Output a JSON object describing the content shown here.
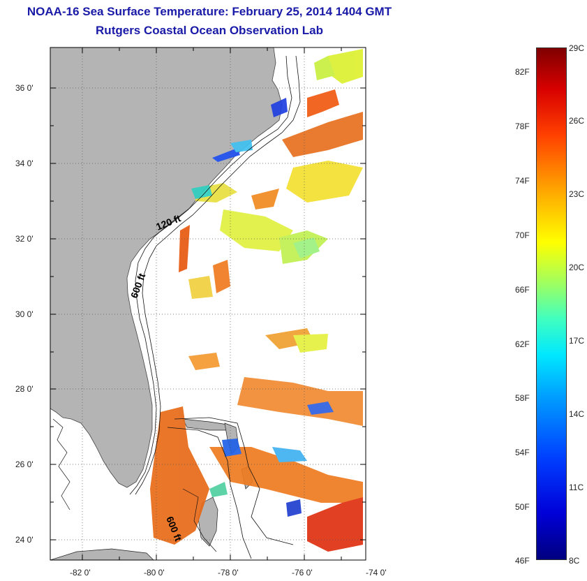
{
  "header": {
    "title": "NOAA-16 Sea Surface Temperature:  February 25, 2014 1404 GMT",
    "subtitle": "Rutgers Coastal Ocean Observation Lab"
  },
  "map": {
    "lat_ticks": [
      "36 0'",
      "34 0'",
      "32 0'",
      "30 0'",
      "28 0'",
      "26 0'",
      "24 0'"
    ],
    "lon_ticks": [
      "-82 0'",
      "-80 0'",
      "-78 0'",
      "-76 0'",
      "-74 0'"
    ],
    "contour_labels": {
      "shelf_120": "120 ft",
      "shelf_600": "600 ft",
      "shelf_600_south": "600 ft"
    },
    "colors": {
      "land": "#b4b4b4",
      "water": "#ffffff"
    }
  },
  "colorbar": {
    "fahrenheit": [
      "82F",
      "78F",
      "74F",
      "70F",
      "66F",
      "62F",
      "58F",
      "54F",
      "50F",
      "46F"
    ],
    "celsius": [
      "29C",
      "26C",
      "23C",
      "20C",
      "17C",
      "14C",
      "11C",
      "8C"
    ]
  }
}
